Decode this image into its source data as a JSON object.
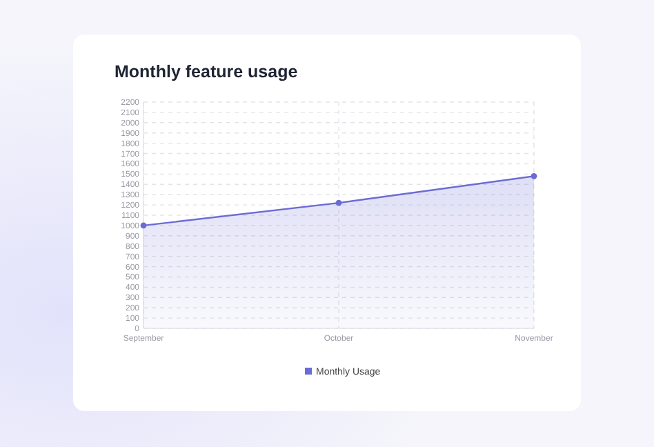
{
  "chart_data": {
    "type": "area",
    "title": "Monthly feature usage",
    "categories": [
      "September",
      "October",
      "November"
    ],
    "series": [
      {
        "name": "Monthly Usage",
        "color": "#6b6bd6",
        "values": [
          1000,
          1220,
          1480
        ]
      }
    ],
    "ylim": [
      0,
      2200
    ],
    "yticks": [
      0,
      100,
      200,
      300,
      400,
      500,
      600,
      700,
      800,
      900,
      1000,
      1100,
      1200,
      1300,
      1400,
      1500,
      1600,
      1700,
      1800,
      1900,
      2000,
      2100,
      2200
    ],
    "grid": true,
    "legend": "bottom",
    "marker": "circle",
    "line_style": "solid"
  }
}
